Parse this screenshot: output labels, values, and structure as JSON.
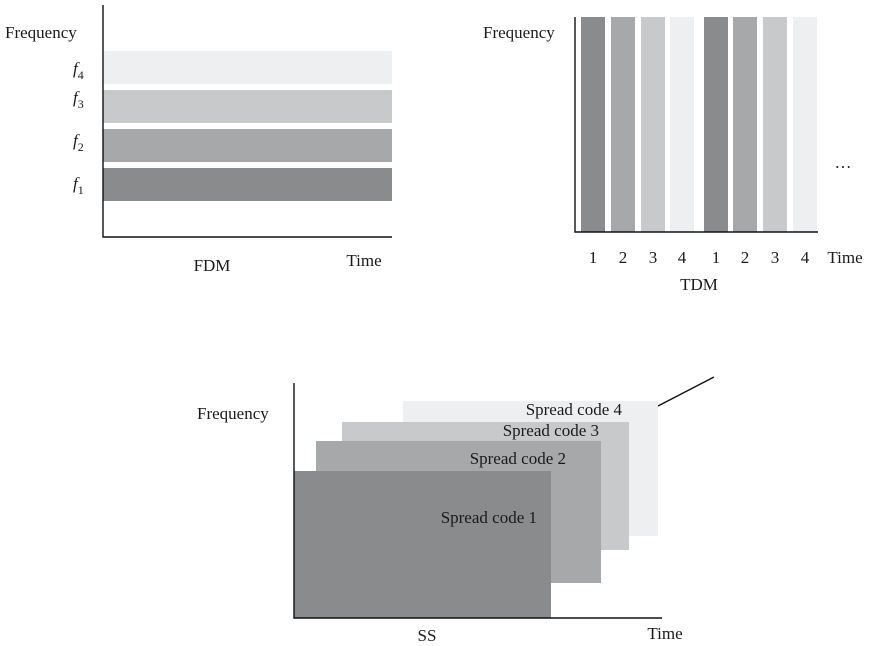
{
  "colors": {
    "level1": "#8a8b8d",
    "level2": "#a7a8aa",
    "level3": "#c8c9cb",
    "level4": "#eeeff0",
    "text": "#1a1a1a",
    "axis": "#111111"
  },
  "fdm": {
    "y_axis_label": "Frequency",
    "x_axis_label": "Time",
    "caption": "FDM",
    "bands": [
      {
        "symbol": "f",
        "subscript": "4"
      },
      {
        "symbol": "f",
        "subscript": "3"
      },
      {
        "symbol": "f",
        "subscript": "2"
      },
      {
        "symbol": "f",
        "subscript": "1"
      }
    ]
  },
  "tdm": {
    "y_axis_label": "Frequency",
    "x_axis_label": "Time",
    "caption": "TDM",
    "slots": [
      "1",
      "2",
      "3",
      "4",
      "1",
      "2",
      "3",
      "4"
    ],
    "ellipsis": "…"
  },
  "ss": {
    "y_axis_label": "Frequency",
    "x_axis_label": "Time",
    "caption": "SS",
    "codes": [
      "Spread code 1",
      "Spread code 2",
      "Spread code 3",
      "Spread code 4"
    ]
  }
}
